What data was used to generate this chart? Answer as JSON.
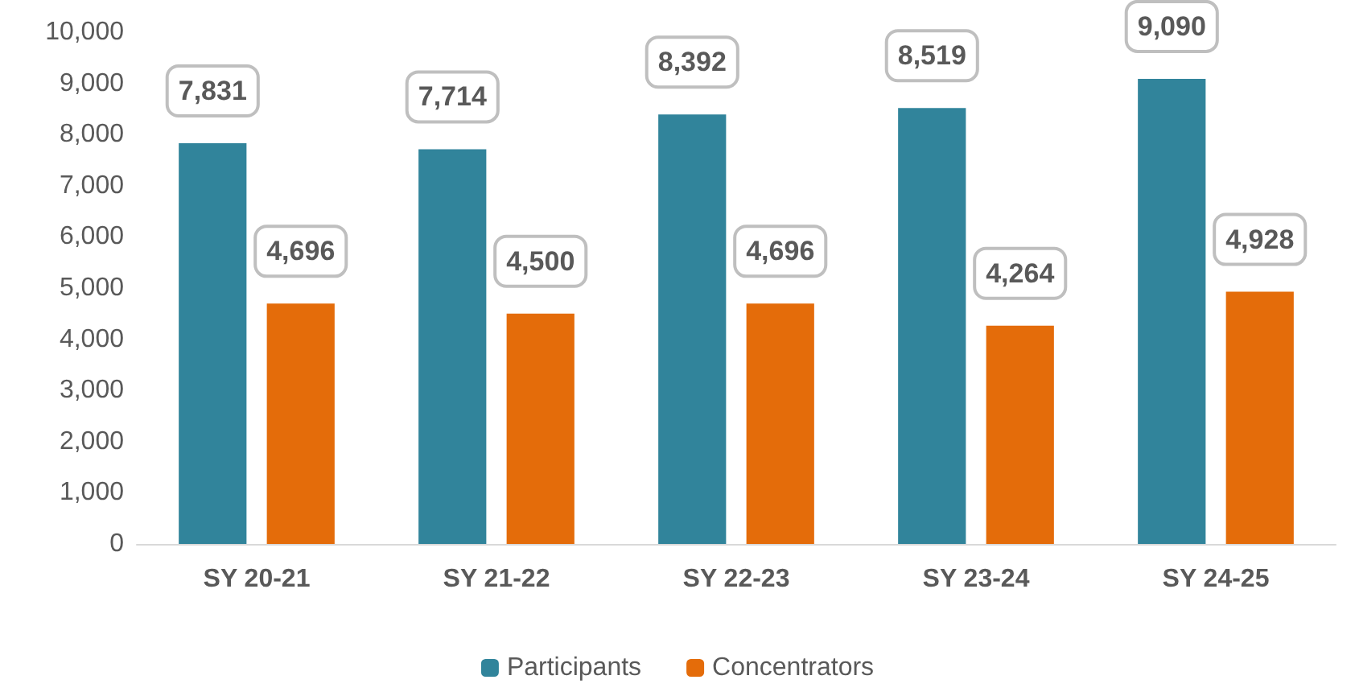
{
  "chart_data": {
    "type": "bar",
    "categories": [
      "SY 20-21",
      "SY 21-22",
      "SY 22-23",
      "SY 23-24",
      "SY 24-25"
    ],
    "series": [
      {
        "name": "Participants",
        "color": "#31849b",
        "values": [
          7831,
          7714,
          8392,
          8519,
          9090
        ],
        "value_labels": [
          "7,831",
          "7,714",
          "8,392",
          "8,519",
          "9,090"
        ]
      },
      {
        "name": "Concentrators",
        "color": "#e46c0a",
        "values": [
          4696,
          4500,
          4696,
          4264,
          4928
        ],
        "value_labels": [
          "4,696",
          "4,500",
          "4,696",
          "4,264",
          "4,928"
        ]
      }
    ],
    "ylim": [
      0,
      10000
    ],
    "yticks": [
      0,
      {
        "value": 1000,
        "label": "1,000"
      },
      {
        "value": 2000,
        "label": "2,000"
      },
      {
        "value": 3000,
        "label": "3,000"
      },
      {
        "value": 4000,
        "label": "4,000"
      },
      {
        "value": 5000,
        "label": "5,000"
      },
      {
        "value": 6000,
        "label": "6,000"
      },
      {
        "value": 7000,
        "label": "7,000"
      },
      {
        "value": 8000,
        "label": "8,000"
      },
      {
        "value": 9000,
        "label": "9,000"
      },
      {
        "value": 10000,
        "label": "10,000"
      }
    ],
    "grid": false,
    "legend": "bottom"
  }
}
